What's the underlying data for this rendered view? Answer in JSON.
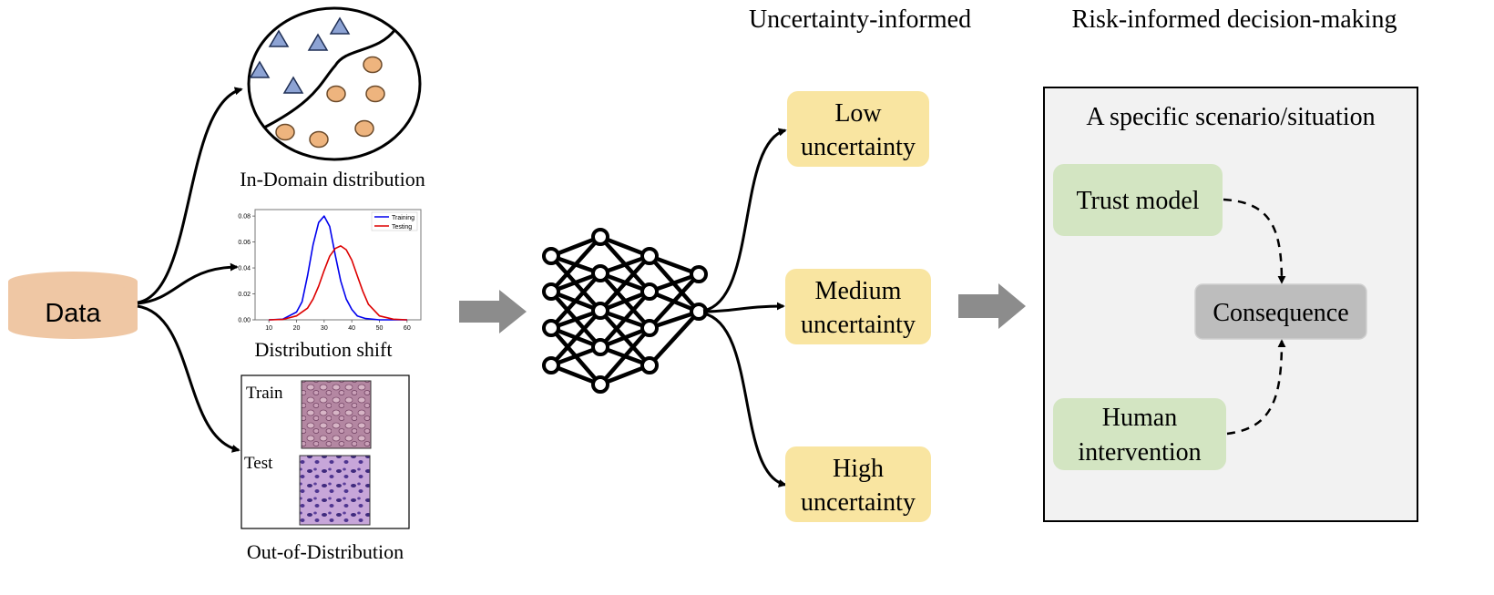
{
  "headers": {
    "uncertainty": "Uncertainty-informed",
    "risk": "Risk-informed decision-making"
  },
  "data_node": {
    "label": "Data"
  },
  "inputs": {
    "in_domain": {
      "caption": "In-Domain distribution"
    },
    "shift": {
      "caption": "Distribution shift",
      "legend": [
        "Training",
        "Testing"
      ],
      "x_ticks": [
        "10",
        "20",
        "30",
        "40",
        "50",
        "60"
      ],
      "y_ticks": [
        "0.00",
        "0.02",
        "0.04",
        "0.06",
        "0.08"
      ]
    },
    "ood": {
      "caption": "Out-of-Distribution",
      "train_label": "Train",
      "test_label": "Test"
    }
  },
  "outputs": {
    "low": {
      "line1": "Low",
      "line2": "uncertainty"
    },
    "medium": {
      "line1": "Medium",
      "line2": "uncertainty"
    },
    "high": {
      "line1": "High",
      "line2": "uncertainty"
    }
  },
  "scenario": {
    "title": "A specific scenario/situation",
    "trust": "Trust model",
    "human": {
      "line1": "Human",
      "line2": "intervention"
    },
    "consequence": "Consequence"
  },
  "chart_data": {
    "type": "line",
    "xlim": [
      5,
      65
    ],
    "ylim": [
      0,
      0.085
    ],
    "legend_position": "top-right",
    "series": [
      {
        "name": "Training",
        "color": "#0000ee",
        "x": [
          10,
          15,
          20,
          22,
          24,
          26,
          28,
          30,
          32,
          34,
          36,
          38,
          40,
          42,
          45,
          50,
          55,
          60
        ],
        "y": [
          0.0,
          0.0005,
          0.006,
          0.014,
          0.034,
          0.058,
          0.075,
          0.08,
          0.072,
          0.05,
          0.03,
          0.016,
          0.008,
          0.003,
          0.001,
          0.0,
          0.0,
          0.0
        ]
      },
      {
        "name": "Testing",
        "color": "#dd0000",
        "x": [
          10,
          15,
          20,
          24,
          26,
          28,
          30,
          32,
          34,
          36,
          38,
          40,
          42,
          44,
          46,
          50,
          55,
          60
        ],
        "y": [
          0.0,
          0.0003,
          0.003,
          0.009,
          0.016,
          0.026,
          0.038,
          0.049,
          0.055,
          0.057,
          0.054,
          0.046,
          0.034,
          0.022,
          0.012,
          0.003,
          0.0005,
          0.0
        ]
      }
    ]
  }
}
